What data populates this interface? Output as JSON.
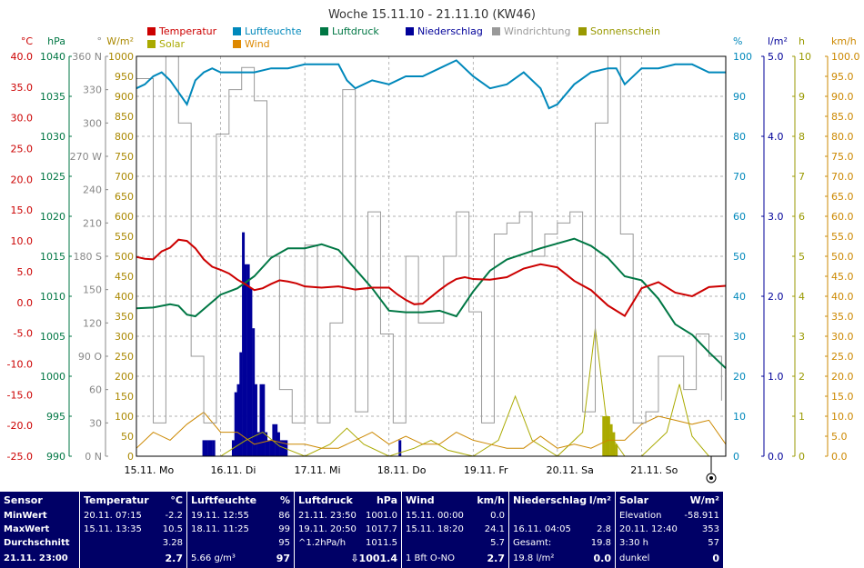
{
  "chart_data": {
    "type": "line",
    "title": "Woche 15.11.10 - 21.11.10 (KW46)",
    "x_day_labels": [
      "15.11. Mo",
      "16.11. Di",
      "17.11. Mi",
      "18.11. Do",
      "19.11. Fr",
      "20.11. Sa",
      "21.11. So"
    ],
    "x_range_days": [
      0,
      7
    ],
    "legend": [
      {
        "name": "Temperatur",
        "color": "#cc0000"
      },
      {
        "name": "Luftfeuchte",
        "color": "#0088bb"
      },
      {
        "name": "Luftdruck",
        "color": "#007744"
      },
      {
        "name": "Niederschlag",
        "color": "#000099"
      },
      {
        "name": "Windrichtung",
        "color": "#999999"
      },
      {
        "name": "Sonnenschein",
        "color": "#999900"
      },
      {
        "name": "Solar",
        "color": "#aaaa00"
      },
      {
        "name": "Wind",
        "color": "#dd8800"
      }
    ],
    "axes": {
      "temperature": {
        "unit": "°C",
        "color": "#cc0000",
        "range": [
          -25,
          40
        ],
        "ticks": [
          "40.0",
          "35.0",
          "30.0",
          "25.0",
          "20.0",
          "15.0",
          "10.0",
          "5.0",
          "0.0",
          "-5.0",
          "-10.0",
          "-15.0",
          "-20.0",
          "-25.0"
        ]
      },
      "pressure": {
        "unit": "hPa",
        "color": "#007744",
        "range": [
          990,
          1040
        ],
        "ticks": [
          "1040",
          "1035",
          "1030",
          "1025",
          "1020",
          "1015",
          "1010",
          "1005",
          "1000",
          "995",
          "990"
        ]
      },
      "wind_direction": {
        "unit": "°",
        "color": "#888888",
        "range": [
          0,
          360
        ],
        "ticks": [
          "360 N",
          "330",
          "300",
          "270 W",
          "240",
          "210",
          "180 S",
          "150",
          "120",
          "90 O",
          "60",
          "30",
          "0 N"
        ]
      },
      "solar": {
        "unit": "W/m²",
        "color": "#aa8800",
        "range": [
          0,
          1000
        ],
        "ticks": [
          "1000",
          "950",
          "900",
          "850",
          "800",
          "750",
          "700",
          "650",
          "600",
          "550",
          "500",
          "450",
          "400",
          "350",
          "300",
          "250",
          "200",
          "150",
          "100",
          "50",
          "0"
        ]
      },
      "humidity": {
        "unit": "%",
        "color": "#0088bb",
        "range": [
          0,
          100
        ],
        "ticks": [
          "100",
          "90",
          "80",
          "70",
          "60",
          "50",
          "40",
          "30",
          "20",
          "10",
          "0"
        ]
      },
      "precipitation": {
        "unit": "l/m²",
        "color": "#000099",
        "range": [
          0,
          5
        ],
        "ticks": [
          "5.0",
          "4.0",
          "3.0",
          "2.0",
          "1.0",
          "0.0"
        ]
      },
      "sunshine": {
        "unit": "h",
        "color": "#999900",
        "range": [
          0,
          10
        ],
        "ticks": [
          "10",
          "9",
          "8",
          "7",
          "6",
          "5",
          "4",
          "3",
          "2",
          "1",
          "0"
        ]
      },
      "wind_speed": {
        "unit": "km/h",
        "color": "#cc8800",
        "range": [
          0,
          100
        ],
        "ticks": [
          "100.0",
          "95.0",
          "90.0",
          "85.0",
          "80.0",
          "75.0",
          "70.0",
          "65.0",
          "60.0",
          "55.0",
          "50.0",
          "45.0",
          "40.0",
          "35.0",
          "30.0",
          "25.0",
          "20.0",
          "15.0",
          "10.0",
          "5.0",
          "0.0"
        ]
      }
    },
    "series": [
      {
        "name": "Temperatur",
        "axis": "temperature",
        "color": "#cc0000",
        "x": [
          0,
          0.1,
          0.2,
          0.3,
          0.4,
          0.5,
          0.6,
          0.7,
          0.8,
          0.9,
          1.0,
          1.1,
          1.2,
          1.3,
          1.4,
          1.5,
          1.6,
          1.7,
          1.8,
          1.9,
          2.0,
          2.2,
          2.4,
          2.6,
          2.8,
          3.0,
          3.1,
          3.2,
          3.3,
          3.4,
          3.5,
          3.6,
          3.7,
          3.8,
          3.9,
          4.0,
          4.2,
          4.4,
          4.6,
          4.8,
          5.0,
          5.2,
          5.4,
          5.6,
          5.8,
          6.0,
          6.2,
          6.4,
          6.6,
          6.8,
          7.0
        ],
        "y": [
          7.4,
          7.1,
          7.0,
          8.3,
          8.9,
          10.2,
          10.0,
          8.8,
          7.0,
          5.8,
          5.3,
          4.7,
          3.7,
          2.9,
          2.0,
          2.3,
          3.0,
          3.6,
          3.4,
          3.1,
          2.6,
          2.4,
          2.6,
          2.1,
          2.4,
          2.4,
          1.3,
          0.4,
          -0.3,
          -0.2,
          0.9,
          2.0,
          3.0,
          3.8,
          4.1,
          3.8,
          3.7,
          4.1,
          5.5,
          6.2,
          5.7,
          3.5,
          2.0,
          -0.5,
          -2.2,
          2.3,
          3.3,
          1.6,
          1.0,
          2.5,
          2.7
        ]
      },
      {
        "name": "Luftfeuchte",
        "axis": "humidity",
        "color": "#0088bb",
        "x": [
          0,
          0.1,
          0.2,
          0.3,
          0.4,
          0.5,
          0.6,
          0.7,
          0.8,
          0.9,
          1.0,
          1.2,
          1.4,
          1.6,
          1.8,
          2.0,
          2.2,
          2.4,
          2.5,
          2.6,
          2.8,
          3.0,
          3.2,
          3.4,
          3.6,
          3.8,
          4.0,
          4.2,
          4.4,
          4.6,
          4.8,
          4.9,
          5.0,
          5.2,
          5.4,
          5.6,
          5.7,
          5.8,
          6.0,
          6.2,
          6.4,
          6.6,
          6.8,
          7.0
        ],
        "y": [
          92,
          93,
          95,
          96,
          94,
          91,
          88,
          94,
          96,
          97,
          96,
          96,
          96,
          97,
          97,
          98,
          98,
          98,
          94,
          92,
          94,
          93,
          95,
          95,
          97,
          99,
          95,
          92,
          93,
          96,
          92,
          87,
          88,
          93,
          96,
          97,
          97,
          93,
          97,
          97,
          98,
          98,
          96,
          96
        ]
      },
      {
        "name": "Luftdruck",
        "axis": "pressure",
        "color": "#007744",
        "x": [
          0,
          0.2,
          0.4,
          0.5,
          0.6,
          0.7,
          0.8,
          1.0,
          1.2,
          1.4,
          1.6,
          1.8,
          2.0,
          2.2,
          2.4,
          2.6,
          2.8,
          3.0,
          3.2,
          3.4,
          3.6,
          3.8,
          4.0,
          4.2,
          4.4,
          4.6,
          4.8,
          5.0,
          5.2,
          5.4,
          5.6,
          5.8,
          6.0,
          6.2,
          6.4,
          6.6,
          6.8,
          7.0
        ],
        "y": [
          1008.5,
          1008.6,
          1009.0,
          1008.8,
          1007.7,
          1007.5,
          1008.4,
          1010.2,
          1011.0,
          1012.5,
          1014.8,
          1016.0,
          1016.0,
          1016.5,
          1015.8,
          1013.4,
          1011.0,
          1008.2,
          1008.0,
          1008.0,
          1008.2,
          1007.5,
          1010.6,
          1013.2,
          1014.6,
          1015.3,
          1016.0,
          1016.6,
          1017.2,
          1016.3,
          1014.8,
          1012.5,
          1012.0,
          1009.7,
          1006.5,
          1005.2,
          1003.0,
          1001.0
        ]
      },
      {
        "name": "Windrichtung",
        "axis": "wind_direction",
        "color": "#999999",
        "x": [
          0,
          0.2,
          0.35,
          0.5,
          0.65,
          0.8,
          0.95,
          1.1,
          1.25,
          1.4,
          1.55,
          1.7,
          1.85,
          2.0,
          2.15,
          2.3,
          2.45,
          2.6,
          2.75,
          2.9,
          3.05,
          3.2,
          3.35,
          3.5,
          3.65,
          3.8,
          3.95,
          4.1,
          4.25,
          4.4,
          4.55,
          4.7,
          4.85,
          5.0,
          5.15,
          5.3,
          5.45,
          5.6,
          5.75,
          5.9,
          6.05,
          6.2,
          6.35,
          6.5,
          6.65,
          6.8,
          6.95
        ],
        "y": [
          340,
          30,
          360,
          300,
          90,
          30,
          290,
          330,
          350,
          320,
          180,
          60,
          30,
          190,
          30,
          120,
          330,
          40,
          220,
          110,
          30,
          180,
          120,
          120,
          180,
          220,
          130,
          30,
          200,
          210,
          220,
          180,
          200,
          210,
          220,
          40,
          300,
          360,
          200,
          30,
          40,
          90,
          90,
          60,
          110,
          90,
          50
        ]
      },
      {
        "name": "Wind",
        "axis": "wind_speed",
        "color": "#cc8800",
        "x": [
          0,
          0.2,
          0.4,
          0.6,
          0.8,
          1.0,
          1.2,
          1.4,
          1.6,
          1.8,
          2.0,
          2.2,
          2.4,
          2.6,
          2.8,
          3.0,
          3.2,
          3.4,
          3.6,
          3.8,
          4.0,
          4.2,
          4.4,
          4.6,
          4.8,
          5.0,
          5.2,
          5.4,
          5.6,
          5.8,
          6.0,
          6.2,
          6.4,
          6.6,
          6.8,
          7.0
        ],
        "y": [
          2,
          6,
          4,
          8,
          11,
          6,
          6,
          3,
          4,
          3,
          3,
          2,
          2,
          4,
          6,
          3,
          5,
          3,
          3,
          6,
          4,
          3,
          2,
          2,
          5,
          2,
          3,
          2,
          4,
          4,
          8,
          10,
          9,
          8,
          9,
          3
        ]
      },
      {
        "name": "Solar",
        "axis": "solar",
        "color": "#aaaa00",
        "x": [
          0,
          0.5,
          1.0,
          1.3,
          1.5,
          1.7,
          2.0,
          2.3,
          2.5,
          2.7,
          3.0,
          3.3,
          3.5,
          3.7,
          4.0,
          4.3,
          4.5,
          4.7,
          5.0,
          5.3,
          5.45,
          5.6,
          5.8,
          6.0,
          6.3,
          6.45,
          6.6,
          6.8,
          7.0
        ],
        "y": [
          0,
          0,
          0,
          40,
          60,
          25,
          0,
          30,
          70,
          30,
          0,
          20,
          40,
          15,
          0,
          40,
          150,
          40,
          0,
          60,
          320,
          60,
          0,
          0,
          60,
          180,
          50,
          0,
          0
        ]
      }
    ],
    "precipitation_bars": {
      "x": [
        0.8,
        0.83,
        0.86,
        0.89,
        0.92,
        1.15,
        1.18,
        1.21,
        1.24,
        1.27,
        1.3,
        1.33,
        1.36,
        1.39,
        1.42,
        1.45,
        1.48,
        1.51,
        1.54,
        1.57,
        1.6,
        1.63,
        1.66,
        1.69,
        1.72,
        1.75,
        1.78,
        3.13
      ],
      "y": [
        0.2,
        0.2,
        0.2,
        0.2,
        0.2,
        0.2,
        0.8,
        0.9,
        1.3,
        2.8,
        2.4,
        2.4,
        2.1,
        1.6,
        0.9,
        0.3,
        0.9,
        0.9,
        0.3,
        0.2,
        0.2,
        0.4,
        0.4,
        0.3,
        0.2,
        0.2,
        0.2,
        0.2
      ]
    },
    "sunshine_bars": {
      "x": [
        5.55,
        5.58,
        5.61,
        5.64,
        5.67,
        5.7
      ],
      "y": [
        1.0,
        1.0,
        1.0,
        0.8,
        0.6,
        0.3
      ]
    }
  },
  "stats": {
    "sensor": {
      "title": "Sensor",
      "rows": [
        "MinWert",
        "MaxWert",
        "Durchschnitt"
      ],
      "last": "21.11. 23:00"
    },
    "temperatur": {
      "title": "Temperatur",
      "unit": "°C",
      "min_time": "20.11.  07:15",
      "min": "-2.2",
      "max_time": "15.11.  13:35",
      "max": "10.5",
      "avg": "3.28",
      "last": "2.7"
    },
    "luftfeuchte": {
      "title": "Luftfeuchte",
      "unit": "%",
      "min_time": "19.11.  12:55",
      "min": "86",
      "max_time": "18.11.  11:25",
      "max": "99",
      "avg": "95",
      "abs": "5.66 g/m³",
      "last": "97"
    },
    "luftdruck": {
      "title": "Luftdruck",
      "unit": "hPa",
      "min_time": "21.11.  23:50",
      "min": "1001.0",
      "max_time": "19.11.  20:50",
      "max": "1017.7",
      "trend": "^1.2hPa/h",
      "avg": "1011.5",
      "last": "⇩1001.4"
    },
    "wind": {
      "title": "Wind",
      "unit": "km/h",
      "min_time": "15.11.  00:00",
      "min": "0.0",
      "max_time": "15.11.  18:20",
      "max": "24.1",
      "avg": "5.7",
      "dir": "1 Bft O-NO",
      "last": "2.7"
    },
    "niederschlag": {
      "title": "Niederschlag",
      "unit": "l/m²",
      "max_time": "16.11.  04:05",
      "max": "2.8",
      "total_label": "Gesamt:",
      "total": "19.8",
      "last_label": "19.8 l/m²",
      "last": "0.0"
    },
    "solar": {
      "title": "Solar",
      "unit": "W/m²",
      "elev_label": "Elevation",
      "elev": "-58.911",
      "max_time": "20.11.  12:40",
      "max": "353",
      "sun_h": "3:30 h",
      "sun_val": "57",
      "state": "dunkel",
      "last": "0"
    }
  }
}
